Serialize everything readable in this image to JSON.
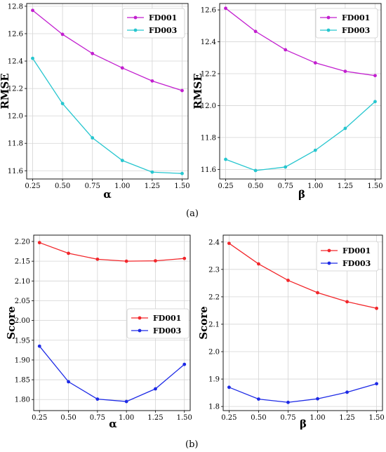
{
  "captions": {
    "a": "(a)",
    "b": "(b)"
  },
  "chart_data": [
    {
      "id": "a-left",
      "type": "line",
      "xlabel": "α",
      "ylabel": "RMSE",
      "x": [
        0.25,
        0.5,
        0.75,
        1.0,
        1.25,
        1.5
      ],
      "xticks": [
        "0.25",
        "0.50",
        "0.75",
        "1.00",
        "1.25",
        "1.50"
      ],
      "xlim": [
        0.2,
        1.55
      ],
      "ylim": [
        11.54,
        12.82
      ],
      "yticks": [
        "11.6",
        "11.8",
        "12.0",
        "12.2",
        "12.4",
        "12.6",
        "12.8"
      ],
      "grid": true,
      "legend_position": "top-right",
      "series": [
        {
          "name": "FD001",
          "color": "#c21fcf",
          "values": [
            12.77,
            12.595,
            12.455,
            12.35,
            12.255,
            12.185
          ]
        },
        {
          "name": "FD003",
          "color": "#27c6cf",
          "values": [
            12.42,
            12.09,
            11.84,
            11.675,
            11.59,
            11.58
          ]
        }
      ]
    },
    {
      "id": "a-right",
      "type": "line",
      "xlabel": "β",
      "ylabel": "RMSE",
      "x": [
        0.25,
        0.5,
        0.75,
        1.0,
        1.25,
        1.5
      ],
      "xticks": [
        "0.25",
        "0.50",
        "0.75",
        "1.00",
        "1.25",
        "1.50"
      ],
      "xlim": [
        0.2,
        1.55
      ],
      "ylim": [
        11.54,
        12.64
      ],
      "yticks": [
        "11.6",
        "11.8",
        "12.0",
        "12.2",
        "12.4",
        "12.6"
      ],
      "grid": true,
      "legend_position": "top-right",
      "series": [
        {
          "name": "FD001",
          "color": "#c21fcf",
          "values": [
            12.61,
            12.465,
            12.35,
            12.268,
            12.215,
            12.188
          ]
        },
        {
          "name": "FD003",
          "color": "#27c6cf",
          "values": [
            11.663,
            11.593,
            11.615,
            11.72,
            11.857,
            12.025
          ]
        }
      ]
    },
    {
      "id": "b-left",
      "type": "line",
      "xlabel": "α",
      "ylabel": "Score",
      "x": [
        0.25,
        0.5,
        0.75,
        1.0,
        1.25,
        1.5
      ],
      "xticks": [
        "0.25",
        "0.50",
        "0.75",
        "1.00",
        "1.25",
        "1.50"
      ],
      "xlim": [
        0.2,
        1.55
      ],
      "ylim": [
        1.772,
        2.216
      ],
      "yticks": [
        "1.80",
        "1.85",
        "1.90",
        "1.95",
        "2.00",
        "2.05",
        "2.10",
        "2.15",
        "2.20"
      ],
      "grid": true,
      "legend_position": "center-right",
      "series": [
        {
          "name": "FD001",
          "color": "#f2262a",
          "values": [
            2.197,
            2.17,
            2.155,
            2.15,
            2.151,
            2.157
          ]
        },
        {
          "name": "FD003",
          "color": "#1d2ae6",
          "values": [
            1.935,
            1.845,
            1.801,
            1.795,
            1.827,
            1.889
          ]
        }
      ]
    },
    {
      "id": "b-right",
      "type": "line",
      "xlabel": "β",
      "ylabel": "Score",
      "x": [
        0.25,
        0.5,
        0.75,
        1.0,
        1.25,
        1.5
      ],
      "xticks": [
        "0.25",
        "0.50",
        "0.75",
        "1.00",
        "1.25",
        "1.50"
      ],
      "xlim": [
        0.2,
        1.55
      ],
      "ylim": [
        1.785,
        2.425
      ],
      "yticks": [
        "1.8",
        "1.9",
        "2.0",
        "2.1",
        "2.2",
        "2.3",
        "2.4"
      ],
      "grid": true,
      "legend_position": "top-right",
      "series": [
        {
          "name": "FD001",
          "color": "#f2262a",
          "values": [
            2.395,
            2.32,
            2.26,
            2.215,
            2.182,
            2.158
          ]
        },
        {
          "name": "FD003",
          "color": "#1d2ae6",
          "values": [
            1.87,
            1.827,
            1.815,
            1.828,
            1.852,
            1.883
          ]
        }
      ]
    }
  ]
}
